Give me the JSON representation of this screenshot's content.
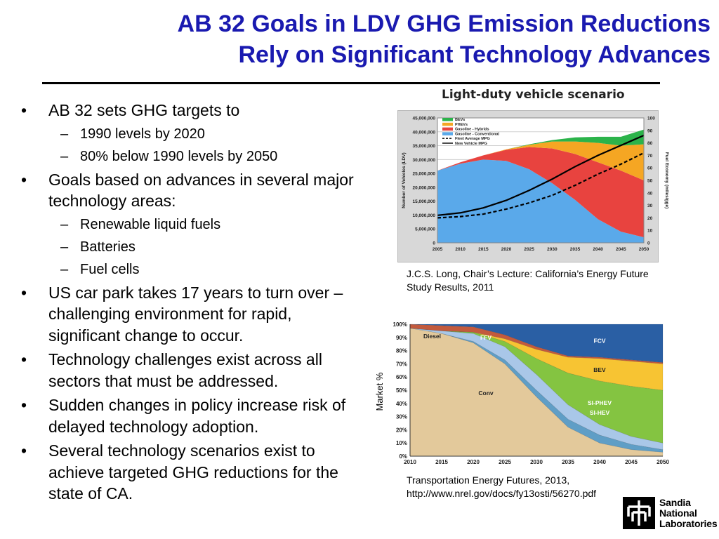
{
  "slide": {
    "title_line1": "AB 32 Goals in LDV GHG Emission Reductions",
    "title_line2": "Rely on Significant Technology Advances",
    "bullets": [
      {
        "text": "AB 32 sets GHG targets to",
        "subs": [
          "1990 levels by 2020",
          "80% below 1990 levels by 2050"
        ]
      },
      {
        "text": "Goals based on advances in several major technology areas:",
        "subs": [
          "Renewable liquid fuels",
          "Batteries",
          "Fuel cells"
        ]
      },
      {
        "text": "US car park takes 17 years to turn over – challenging environment for rapid, significant change to occur.",
        "subs": []
      },
      {
        "text": "Technology challenges exist across all sectors that must be addressed.",
        "subs": []
      },
      {
        "text": "Sudden changes in policy increase risk of delayed technology adoption.",
        "subs": []
      },
      {
        "text": "Several technology scenarios exist to achieve targeted GHG reductions for the state of CA.",
        "subs": []
      }
    ],
    "dash": "–",
    "caption1": "J.C.S. Long, Chair’s Lecture: California’s Energy Future Study Results, 2011",
    "caption2": "Transportation Energy Futures, 2013, http://www.nrel.gov/docs/fy13osti/56270.pdf",
    "logo_lines": [
      "Sandia",
      "National",
      "Laboratories"
    ]
  },
  "chart_data": [
    {
      "type": "area",
      "title": "Light-duty vehicle scenario",
      "ylabel": "Number of Vehicles (LDV)",
      "y2label": "Fuel Economy (miles/gge)",
      "x": [
        2005,
        2010,
        2015,
        2020,
        2025,
        2030,
        2035,
        2040,
        2045,
        2050
      ],
      "xticks": [
        "2005",
        "2010",
        "2015",
        "2020",
        "2025",
        "2030",
        "2035",
        "2040",
        "2045",
        "2050"
      ],
      "yticks": [
        "0",
        "5,000,000",
        "10,000,000",
        "15,000,000",
        "20,000,000",
        "25,000,000",
        "30,000,000",
        "35,000,000",
        "40,000,000",
        "45,000,000"
      ],
      "y2ticks": [
        "0",
        "10",
        "20",
        "30",
        "40",
        "50",
        "60",
        "70",
        "80",
        "90",
        "100"
      ],
      "ylim": [
        0,
        45000000
      ],
      "y2lim": [
        0,
        100
      ],
      "legend_position": "top-left",
      "series": [
        {
          "name": "Gasoline - Conventional",
          "color": "#5aa9ea",
          "values": [
            26000000,
            28500000,
            30000000,
            29500000,
            26500000,
            21500000,
            15500000,
            8500000,
            4000000,
            2000000
          ]
        },
        {
          "name": "Gasoline - Hybrids",
          "color": "#e8433f",
          "values": [
            0,
            500000,
            1500000,
            4000000,
            8000000,
            12500000,
            16500000,
            20500000,
            22000000,
            20500000
          ]
        },
        {
          "name": "PHEVs",
          "color": "#f5a623",
          "values": [
            0,
            0,
            0,
            200000,
            800000,
            2500000,
            4500000,
            7000000,
            9000000,
            13000000
          ]
        },
        {
          "name": "BEVs",
          "color": "#2bb34a",
          "values": [
            0,
            0,
            0,
            0,
            200000,
            500000,
            1500000,
            2200000,
            3200000,
            5300000
          ]
        }
      ],
      "lines": [
        {
          "name": "Fleet Average MPG",
          "style": "dashed",
          "values": [
            20,
            21,
            23,
            27,
            32,
            38,
            46,
            55,
            63,
            72
          ]
        },
        {
          "name": "New Vehicle MPG",
          "style": "solid",
          "values": [
            22,
            24,
            28,
            34,
            42,
            51,
            61,
            70,
            78,
            86
          ]
        }
      ]
    },
    {
      "type": "area",
      "stacked_percent": true,
      "ylabel": "Market %",
      "x": [
        2010,
        2015,
        2020,
        2025,
        2030,
        2035,
        2040,
        2045,
        2050
      ],
      "xticks": [
        "2010",
        "2015",
        "2020",
        "2025",
        "2030",
        "2035",
        "2040",
        "2045",
        "2050"
      ],
      "yticks": [
        "0%",
        "10%",
        "20%",
        "30%",
        "40%",
        "50%",
        "60%",
        "70%",
        "80%",
        "90%",
        "100%"
      ],
      "ylim": [
        0,
        100
      ],
      "series": [
        {
          "name": "Conv",
          "color": "#e3c99b",
          "values": [
            97,
            93,
            86,
            70,
            45,
            22,
            10,
            5,
            3
          ]
        },
        {
          "name": "SI-HEV",
          "color": "#5f9ec6",
          "values": [
            0,
            0,
            1,
            3,
            5,
            6,
            6,
            4,
            2
          ]
        },
        {
          "name": "FFV",
          "color": "#a9c7e8",
          "values": [
            0,
            2,
            6,
            10,
            12,
            11,
            8,
            6,
            5
          ]
        },
        {
          "name": "SI-PHEV",
          "color": "#84c441",
          "values": [
            0,
            0,
            1,
            4,
            12,
            24,
            33,
            38,
            40
          ]
        },
        {
          "name": "BEV",
          "color": "#f7c433",
          "values": [
            0,
            0,
            0,
            2,
            7,
            12,
            17,
            19,
            20
          ]
        },
        {
          "name": "Diesel",
          "color": "#c35a3d",
          "values": [
            3,
            4,
            4,
            3,
            2,
            1,
            1,
            1,
            1
          ]
        },
        {
          "name": "FCV",
          "color": "#2a5fa4",
          "values": [
            0,
            1,
            2,
            8,
            17,
            24,
            25,
            27,
            29
          ]
        }
      ]
    }
  ]
}
